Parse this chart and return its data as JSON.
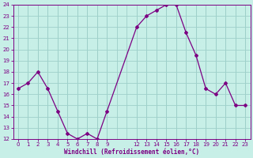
{
  "x": [
    0,
    1,
    2,
    3,
    4,
    5,
    6,
    7,
    8,
    9,
    12,
    13,
    14,
    15,
    16,
    17,
    18,
    19,
    20,
    21,
    22,
    23
  ],
  "y": [
    16.5,
    17.0,
    18.0,
    16.5,
    14.5,
    12.5,
    12.0,
    12.5,
    12.0,
    14.5,
    22.0,
    23.0,
    23.5,
    24.0,
    24.0,
    21.5,
    19.5,
    16.5,
    16.0,
    17.0,
    15.0,
    15.0
  ],
  "line_color": "#7B0082",
  "marker": "D",
  "marker_size": 2.0,
  "bg_color": "#C8EEE8",
  "grid_color": "#9ECFC8",
  "xlabel": "Windchill (Refroidissement éolien,°C)",
  "ylabel": "",
  "xlim": [
    -0.5,
    23.5
  ],
  "ylim": [
    12,
    24
  ],
  "yticks": [
    12,
    13,
    14,
    15,
    16,
    17,
    18,
    19,
    20,
    21,
    22,
    23,
    24
  ],
  "xtick_positions": [
    0,
    1,
    2,
    3,
    4,
    5,
    6,
    7,
    8,
    9,
    12,
    13,
    14,
    15,
    16,
    17,
    18,
    19,
    20,
    21,
    22,
    23
  ],
  "xtick_labels": [
    "0",
    "1",
    "2",
    "3",
    "4",
    "5",
    "6",
    "7",
    "8",
    "9",
    "12",
    "13",
    "14",
    "15",
    "16",
    "17",
    "18",
    "19",
    "20",
    "21",
    "22",
    "23"
  ],
  "tick_color": "#7B0082",
  "label_color": "#7B0082",
  "axis_color": "#7B0082",
  "tick_fontsize": 5.0,
  "label_fontsize": 5.5,
  "linewidth": 0.9
}
